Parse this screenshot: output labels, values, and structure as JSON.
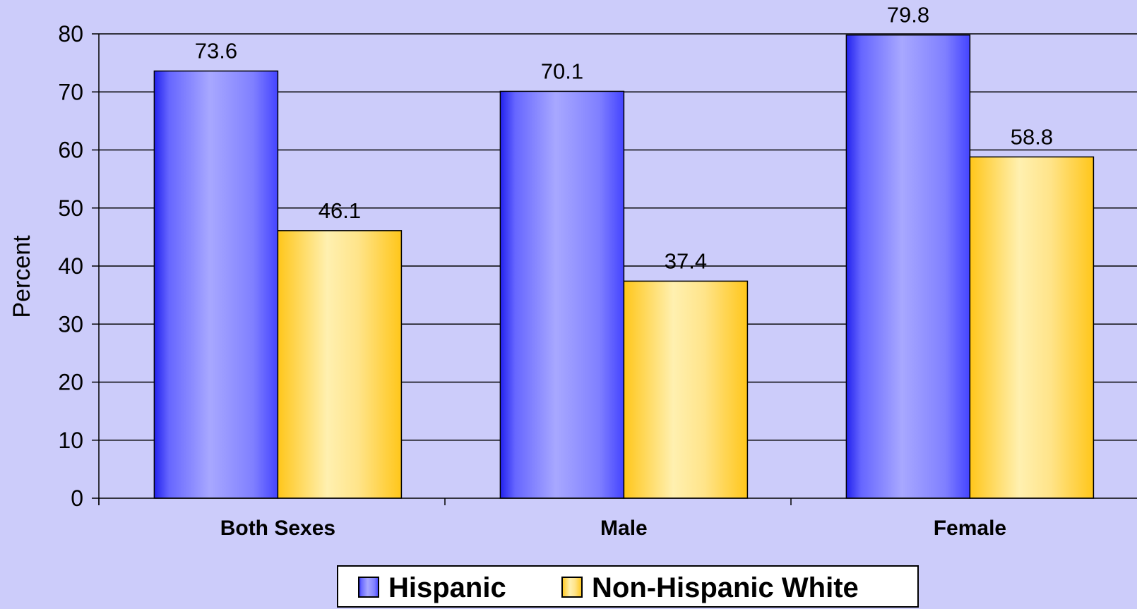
{
  "chart_data": {
    "type": "bar",
    "categories": [
      "Both Sexes",
      "Male",
      "Female"
    ],
    "series": [
      {
        "name": "Hispanic",
        "values": [
          73.6,
          70.1,
          79.8
        ],
        "color": "#3333ff"
      },
      {
        "name": "Non-Hispanic White",
        "values": [
          46.1,
          37.4,
          58.8
        ],
        "color": "#ffcc22"
      }
    ],
    "title": "",
    "xlabel": "",
    "ylabel": "Percent",
    "ylim": [
      0,
      80
    ],
    "yticks": [
      0,
      10,
      20,
      30,
      40,
      50,
      60,
      70,
      80
    ],
    "grid": true,
    "legend_position": "bottom",
    "background": "#ccccfa"
  }
}
